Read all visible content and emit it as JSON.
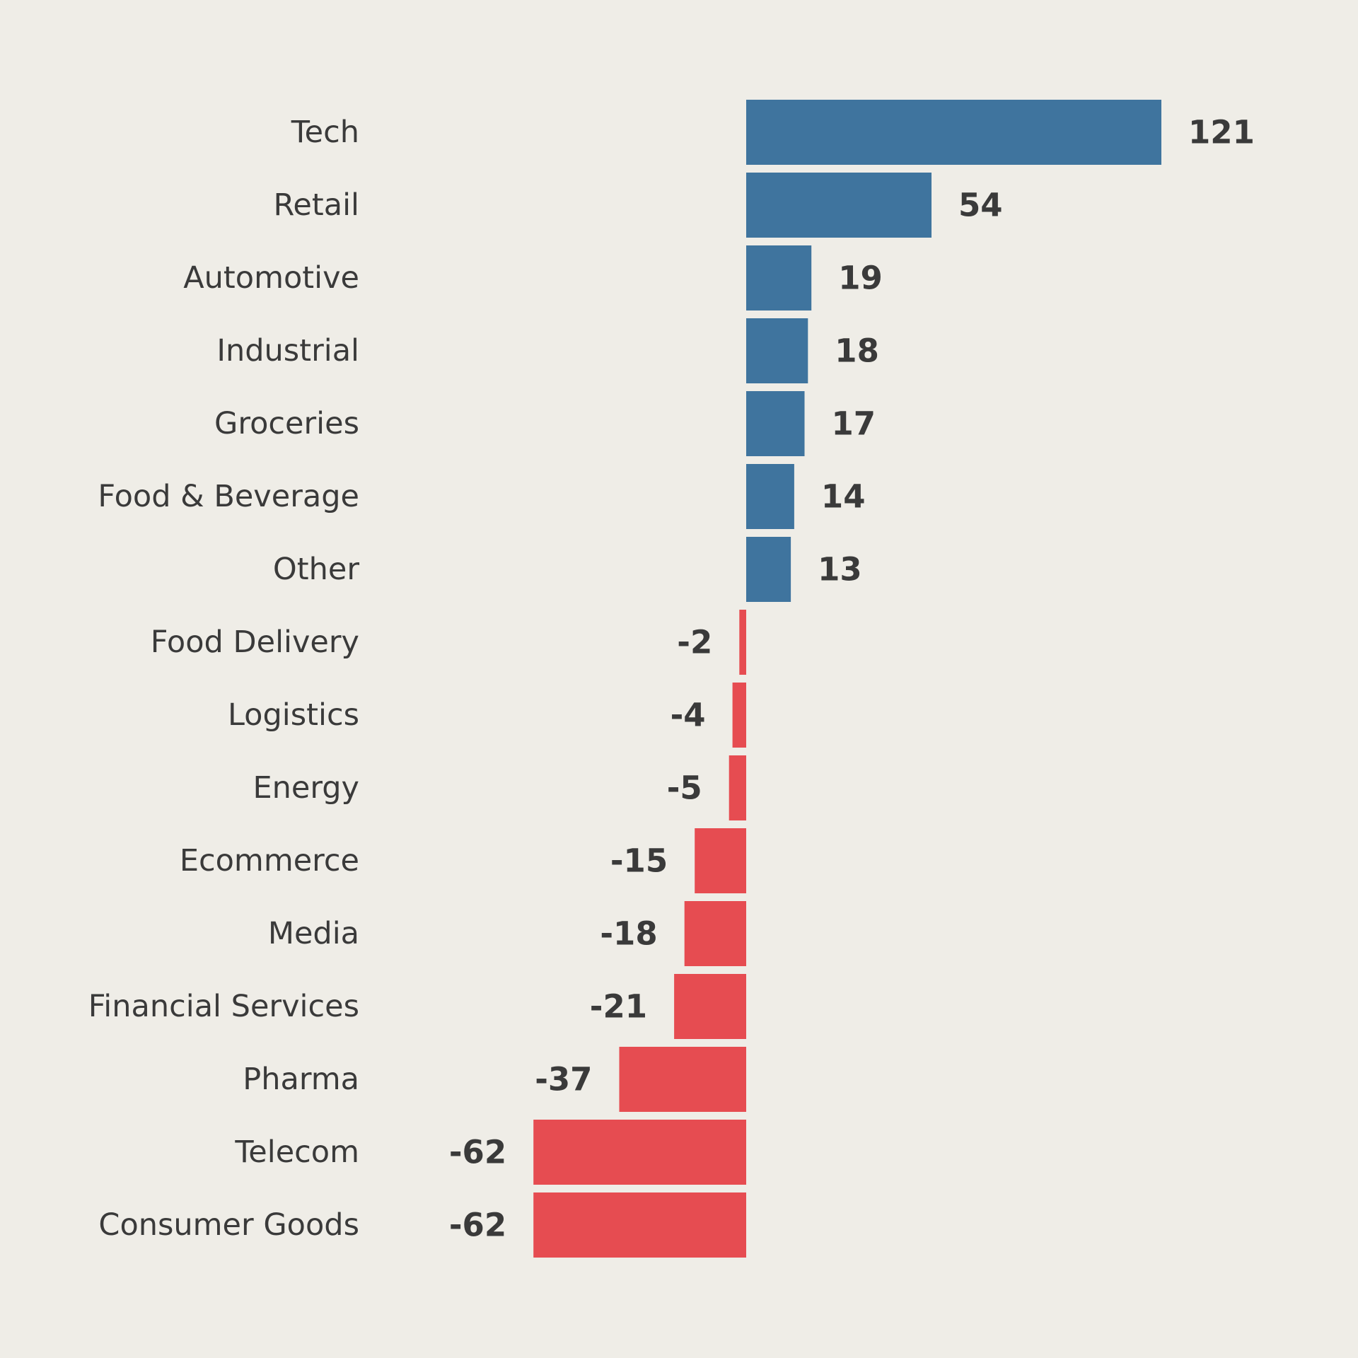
{
  "colors": {
    "background": "#efede7",
    "positive": "#3f749e",
    "negative": "#e64c51",
    "text": "#3a3a3a"
  },
  "chart_data": {
    "type": "bar",
    "orientation": "horizontal",
    "title": "",
    "xlabel": "",
    "ylabel": "",
    "grid": false,
    "legend": "none",
    "xlim": [
      -62,
      121
    ],
    "categories": [
      "Tech",
      "Retail",
      "Automotive",
      "Industrial",
      "Groceries",
      "Food & Beverage",
      "Other",
      "Food Delivery",
      "Logistics",
      "Energy",
      "Ecommerce",
      "Media",
      "Financial Services",
      "Pharma",
      "Telecom",
      "Consumer Goods"
    ],
    "values": [
      121,
      54,
      19,
      18,
      17,
      14,
      13,
      -2,
      -4,
      -5,
      -15,
      -18,
      -21,
      -37,
      -62,
      -62
    ],
    "value_labels": [
      "121",
      "54",
      "19",
      "18",
      "17",
      "14",
      "13",
      "-2",
      "-4",
      "-5",
      "-15",
      "-18",
      "-21",
      "-37",
      "-62",
      "-62"
    ]
  }
}
